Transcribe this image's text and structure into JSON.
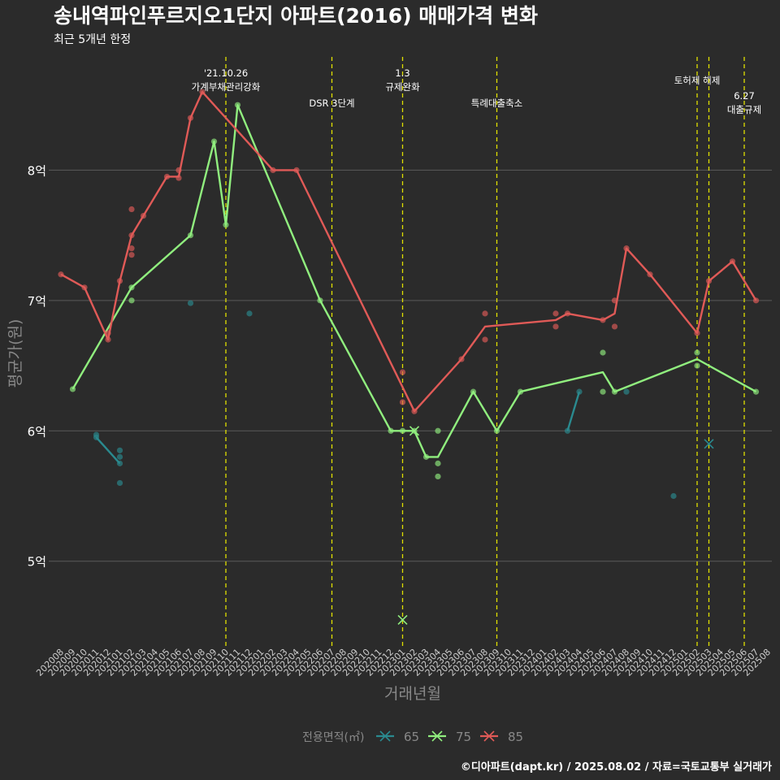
{
  "chart_data": {
    "type": "line",
    "title": "송내역파인푸르지오1단지 아파트(2016) 매매가격 변화",
    "subtitle": "최근 5개년 한정",
    "xlabel": "거래년월",
    "ylabel": "평균가(원)",
    "caption": "©디아파트(dapt.kr) / 2025.08.02 / 자료=국토교통부 실거래가",
    "legend_title": "전용면적(㎡)",
    "legend_position": "bottom",
    "grid": true,
    "ylim": [
      4.35,
      8.9
    ],
    "y_ticks": [
      {
        "value": 5,
        "label": "5억"
      },
      {
        "value": 6,
        "label": "6억"
      },
      {
        "value": 7,
        "label": "7억"
      },
      {
        "value": 8,
        "label": "8억"
      }
    ],
    "x_categories": [
      "202008",
      "202009",
      "202010",
      "202011",
      "202012",
      "202101",
      "202102",
      "202103",
      "202104",
      "202105",
      "202106",
      "202107",
      "202108",
      "202109",
      "202110",
      "202111",
      "202112",
      "202201",
      "202202",
      "202203",
      "202204",
      "202205",
      "202206",
      "202207",
      "202208",
      "202209",
      "202210",
      "202211",
      "202212",
      "202301",
      "202302",
      "202303",
      "202304",
      "202305",
      "202306",
      "202307",
      "202308",
      "202309",
      "202310",
      "202311",
      "202312",
      "202401",
      "202402",
      "202403",
      "202404",
      "202405",
      "202406",
      "202407",
      "202408",
      "202409",
      "202410",
      "202411",
      "202412",
      "202501",
      "202502",
      "202503",
      "202504",
      "202505",
      "202506",
      "202507",
      "202508"
    ],
    "series": [
      {
        "name": "65",
        "color": "#2a8a8f",
        "line": [
          [
            "202011",
            5.95
          ],
          [
            "202101",
            5.75
          ]
        ],
        "line2": [
          [
            "202403",
            6.0
          ],
          [
            "202404",
            6.3
          ]
        ],
        "points": [
          [
            "202011",
            5.97
          ],
          [
            "202011",
            5.95
          ],
          [
            "202101",
            5.85
          ],
          [
            "202101",
            5.8
          ],
          [
            "202101",
            5.75
          ],
          [
            "202101",
            5.6
          ],
          [
            "202107",
            6.98
          ],
          [
            "202112",
            6.9
          ],
          [
            "202403",
            6.0
          ],
          [
            "202404",
            6.3
          ],
          [
            "202408",
            6.3
          ],
          [
            "202412",
            5.5
          ]
        ],
        "cross": [
          [
            "202503",
            5.9
          ]
        ]
      },
      {
        "name": "75",
        "color": "#90ee7e",
        "line": [
          [
            "202009",
            6.32
          ],
          [
            "202102",
            7.1
          ],
          [
            "202107",
            7.5
          ],
          [
            "202109",
            8.22
          ],
          [
            "202110",
            7.58
          ],
          [
            "202111",
            8.5
          ],
          [
            "202206",
            7.0
          ],
          [
            "202212",
            6.0
          ],
          [
            "202301",
            6.0
          ],
          [
            "202302",
            6.0
          ],
          [
            "202303",
            5.8
          ],
          [
            "202304",
            5.8
          ],
          [
            "202307",
            6.3
          ],
          [
            "202309",
            6.0
          ],
          [
            "202311",
            6.3
          ],
          [
            "202406",
            6.45
          ],
          [
            "202407",
            6.3
          ],
          [
            "202502",
            6.55
          ],
          [
            "202507",
            6.3
          ]
        ],
        "points": [
          [
            "202009",
            6.32
          ],
          [
            "202102",
            7.1
          ],
          [
            "202102",
            7.0
          ],
          [
            "202107",
            7.5
          ],
          [
            "202109",
            8.22
          ],
          [
            "202110",
            7.58
          ],
          [
            "202111",
            8.5
          ],
          [
            "202206",
            7.0
          ],
          [
            "202212",
            6.0
          ],
          [
            "202301",
            6.0
          ],
          [
            "202302",
            6.0
          ],
          [
            "202303",
            5.8
          ],
          [
            "202304",
            6.0
          ],
          [
            "202304",
            5.75
          ],
          [
            "202304",
            5.65
          ],
          [
            "202307",
            6.3
          ],
          [
            "202309",
            6.0
          ],
          [
            "202311",
            6.3
          ],
          [
            "202406",
            6.6
          ],
          [
            "202406",
            6.3
          ],
          [
            "202407",
            6.3
          ],
          [
            "202502",
            6.6
          ],
          [
            "202502",
            6.5
          ],
          [
            "202507",
            6.3
          ]
        ],
        "cross": [
          [
            "202301",
            4.55
          ],
          [
            "202302",
            6.0
          ]
        ]
      },
      {
        "name": "85",
        "color": "#e05a57",
        "line": [
          [
            "202008",
            7.2
          ],
          [
            "202010",
            7.1
          ],
          [
            "202012",
            6.7
          ],
          [
            "202101",
            7.15
          ],
          [
            "202102",
            7.5
          ],
          [
            "202103",
            7.65
          ],
          [
            "202105",
            7.95
          ],
          [
            "202106",
            7.95
          ],
          [
            "202107",
            8.4
          ],
          [
            "202108",
            8.6
          ],
          [
            "202202",
            8.0
          ],
          [
            "202204",
            8.0
          ],
          [
            "202302",
            6.15
          ],
          [
            "202306",
            6.55
          ],
          [
            "202308",
            6.8
          ],
          [
            "202402",
            6.85
          ],
          [
            "202403",
            6.9
          ],
          [
            "202406",
            6.85
          ],
          [
            "202407",
            6.9
          ],
          [
            "202408",
            7.4
          ],
          [
            "202410",
            7.2
          ],
          [
            "202502",
            6.75
          ],
          [
            "202503",
            7.15
          ],
          [
            "202505",
            7.3
          ],
          [
            "202507",
            7.0
          ]
        ],
        "points": [
          [
            "202008",
            7.2
          ],
          [
            "202010",
            7.1
          ],
          [
            "202012",
            6.7
          ],
          [
            "202012",
            6.75
          ],
          [
            "202101",
            7.15
          ],
          [
            "202102",
            7.7
          ],
          [
            "202102",
            7.5
          ],
          [
            "202102",
            7.4
          ],
          [
            "202102",
            7.35
          ],
          [
            "202103",
            7.65
          ],
          [
            "202105",
            7.95
          ],
          [
            "202106",
            8.0
          ],
          [
            "202106",
            7.94
          ],
          [
            "202107",
            8.4
          ],
          [
            "202108",
            8.6
          ],
          [
            "202202",
            8.0
          ],
          [
            "202204",
            8.0
          ],
          [
            "202301",
            6.45
          ],
          [
            "202301",
            6.22
          ],
          [
            "202302",
            6.15
          ],
          [
            "202306",
            6.55
          ],
          [
            "202308",
            6.9
          ],
          [
            "202308",
            6.7
          ],
          [
            "202402",
            6.9
          ],
          [
            "202402",
            6.8
          ],
          [
            "202403",
            6.9
          ],
          [
            "202406",
            6.85
          ],
          [
            "202407",
            7.0
          ],
          [
            "202407",
            6.8
          ],
          [
            "202408",
            7.4
          ],
          [
            "202410",
            7.2
          ],
          [
            "202502",
            6.75
          ],
          [
            "202503",
            7.15
          ],
          [
            "202505",
            7.3
          ],
          [
            "202507",
            7.0
          ]
        ],
        "cross": []
      }
    ],
    "annotations": [
      {
        "x": "202110",
        "lines": [
          "'21.10.26",
          "가계부채관리강화"
        ],
        "row": 0
      },
      {
        "x": "202207",
        "lines": [
          "DSR 3단계"
        ],
        "row": 1
      },
      {
        "x": "202301",
        "lines": [
          "1.3",
          "규제완화"
        ],
        "row": 0
      },
      {
        "x": "202309",
        "lines": [
          "특례대출축소"
        ],
        "row": 1
      },
      {
        "x": "202502",
        "lines": [
          "토허제 해제"
        ],
        "row": 0,
        "align": "middle-right"
      },
      {
        "x": "202503",
        "lines": [],
        "row": 0
      },
      {
        "x": "202506",
        "lines": [
          "6.27",
          "대출규제"
        ],
        "row": 2
      }
    ]
  },
  "colors": {
    "background": "#2b2b2b",
    "grid": "#5a5a5a",
    "vline": "#e0e000",
    "text": "#ffffff",
    "muted": "#888888"
  }
}
